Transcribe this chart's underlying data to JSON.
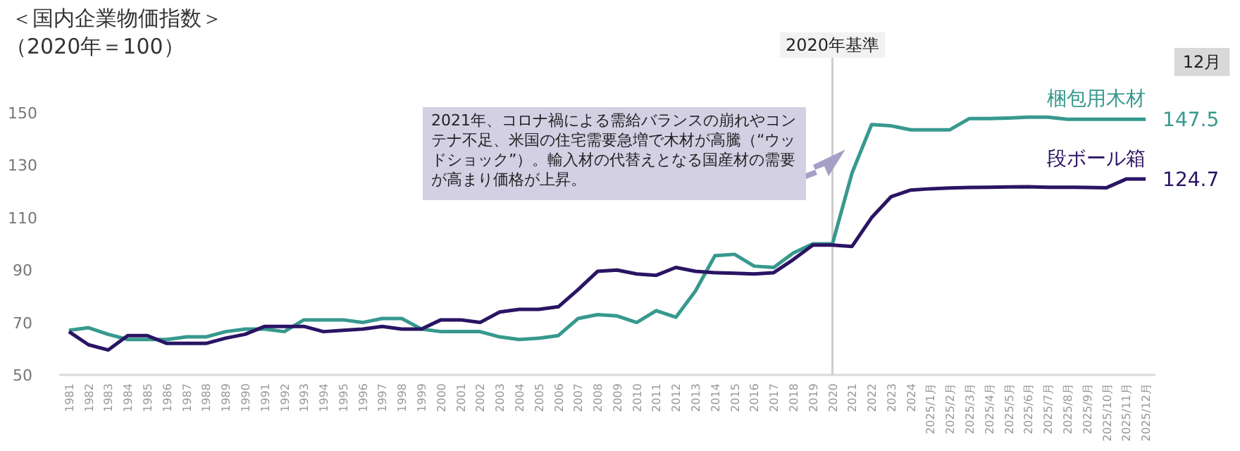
{
  "chart_data": {
    "type": "line",
    "title": "＜国内企業物価指数＞",
    "subtitle": "（2020年＝100）",
    "categories": [
      "1981",
      "1982",
      "1983",
      "1984",
      "1985",
      "1986",
      "1987",
      "1988",
      "1989",
      "1990",
      "1991",
      "1992",
      "1993",
      "1994",
      "1995",
      "1996",
      "1997",
      "1998",
      "1999",
      "2000",
      "2001",
      "2002",
      "2003",
      "2004",
      "2005",
      "2006",
      "2007",
      "2008",
      "2009",
      "2010",
      "2011",
      "2012",
      "2013",
      "2014",
      "2015",
      "2016",
      "2017",
      "2018",
      "2019",
      "2020",
      "2021",
      "2022",
      "2023",
      "2024",
      "2025/1月",
      "2025/2月",
      "2025/3月",
      "2025/4月",
      "2025/5月",
      "2025/6月",
      "2025/7月",
      "2025/8月",
      "2025/9月",
      "2025/10月",
      "2025/11月",
      "2025/12月"
    ],
    "series": [
      {
        "name": "梱包用木材",
        "color": "#37998e",
        "values": [
          67,
          68,
          65.5,
          63.5,
          63.5,
          63.5,
          64.5,
          64.5,
          66.5,
          67.5,
          67.5,
          66.5,
          71,
          71,
          71,
          70,
          71.5,
          71.5,
          67.5,
          66.5,
          66.5,
          66.5,
          64.5,
          63.5,
          64,
          65,
          71.5,
          73,
          72.5,
          70,
          74.5,
          72,
          82,
          95.5,
          96,
          91.5,
          91,
          96.5,
          100,
          100,
          127,
          145.5,
          145,
          143.5,
          143.5,
          143.5,
          147.8,
          147.8,
          148,
          148.3,
          148.3,
          147.5,
          147.5,
          147.5,
          147.5,
          147.5
        ],
        "value_labels": [
          null,
          null,
          null,
          null,
          null,
          null,
          null,
          null,
          null,
          null,
          null,
          null,
          null,
          null,
          null,
          null,
          null,
          null,
          null,
          null,
          null,
          null,
          null,
          null,
          null,
          null,
          null,
          null,
          null,
          null,
          null,
          null,
          null,
          null,
          null,
          null,
          null,
          null,
          null,
          null,
          null,
          null,
          null,
          null,
          null,
          null,
          null,
          null,
          null,
          null,
          null,
          null,
          null,
          null,
          null,
          "147.5"
        ]
      },
      {
        "name": "段ボール箱",
        "color": "#2a1463",
        "values": [
          66.5,
          61.5,
          59.5,
          65,
          65,
          62,
          62,
          62,
          64,
          65.5,
          68.5,
          68.5,
          68.5,
          66.5,
          67,
          67.5,
          68.5,
          67.5,
          67.5,
          71,
          71,
          70,
          74,
          75,
          75,
          76,
          82.5,
          89.5,
          90,
          88.5,
          88,
          91,
          89.5,
          89,
          88.8,
          88.5,
          89,
          94,
          99.5,
          99.5,
          99,
          110,
          118,
          120.5,
          121,
          121.3,
          121.5,
          121.6,
          121.7,
          121.8,
          121.6,
          121.6,
          121.5,
          121.4,
          124.7,
          124.7
        ],
        "value_labels": [
          null,
          null,
          null,
          null,
          null,
          null,
          null,
          null,
          null,
          null,
          null,
          null,
          null,
          null,
          null,
          null,
          null,
          null,
          null,
          null,
          null,
          null,
          null,
          null,
          null,
          null,
          null,
          null,
          null,
          null,
          null,
          null,
          null,
          null,
          null,
          null,
          null,
          null,
          null,
          null,
          null,
          null,
          null,
          null,
          null,
          null,
          null,
          null,
          null,
          null,
          null,
          null,
          null,
          null,
          null,
          "124.7"
        ]
      }
    ],
    "ylim": [
      50,
      150
    ],
    "yticks": [
      50,
      70,
      90,
      110,
      130,
      150
    ],
    "ref_lines": [
      {
        "axis": "x",
        "value": "2020",
        "label": "2020年基準",
        "color": "#cccccc"
      }
    ],
    "annotations": [
      "2021年、コロナ禍による需給バランスの崩れやコンテナ不足、米国の住宅需要急増で木材が高騰（“ウッドショック”）。輸入材の代替えとなる国産材の需要が高まり価格が上昇。",
      "12月"
    ],
    "grid": false,
    "marker": "none",
    "line_style": "solid"
  }
}
